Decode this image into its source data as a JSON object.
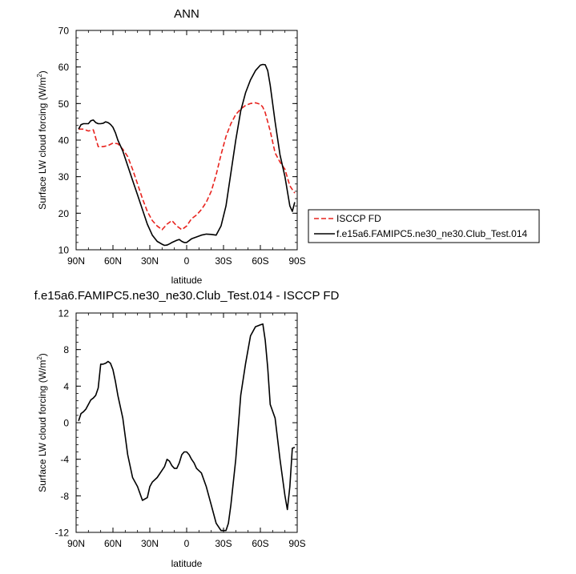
{
  "chart_data": [
    {
      "type": "line",
      "title": "ANN",
      "xlabel": "latitude",
      "ylabel": "Surface LW cloud forcing (W/m",
      "ylabel_sup": "2",
      "ylabel_suffix": ")",
      "xlim": [
        90,
        -90
      ],
      "ylim": [
        10,
        70
      ],
      "yticks": [
        10,
        20,
        30,
        40,
        50,
        60,
        70
      ],
      "xticks": [
        {
          "value": 90,
          "label": "90N"
        },
        {
          "value": 60,
          "label": "60N"
        },
        {
          "value": 30,
          "label": "30N"
        },
        {
          "value": 0,
          "label": "0"
        },
        {
          "value": -30,
          "label": "30S"
        },
        {
          "value": -60,
          "label": "60S"
        },
        {
          "value": -90,
          "label": "90S"
        }
      ],
      "legend": {
        "placement": "right"
      },
      "series": [
        {
          "name": "ISCCP FD",
          "color": "#e8231e",
          "dash": "dashed",
          "x": [
            88,
            84,
            80,
            76,
            72,
            68,
            64,
            60,
            56,
            52,
            48,
            44,
            40,
            36,
            32,
            28,
            24,
            20,
            16,
            12,
            8,
            4,
            0,
            -4,
            -8,
            -12,
            -16,
            -20,
            -24,
            -28,
            -32,
            -36,
            -40,
            -44,
            -48,
            -52,
            -56,
            -60,
            -62,
            -64,
            -68,
            -72,
            -76,
            -80,
            -84,
            -88
          ],
          "y": [
            43,
            43,
            42.5,
            42.8,
            38.2,
            38.2,
            38.5,
            39.2,
            39,
            37.5,
            35.5,
            32,
            28,
            24,
            20.5,
            18,
            16.5,
            15.5,
            17,
            18,
            16.5,
            15.5,
            16.5,
            18.5,
            19.5,
            21,
            23,
            26,
            30.5,
            36,
            41,
            44.5,
            47,
            48.5,
            49.5,
            50,
            50.2,
            49.8,
            49,
            47.5,
            42.5,
            36.5,
            34,
            32,
            27.5,
            25.5
          ]
        },
        {
          "name": "f.e15a6.FAMIPC5.ne30_ne30.Club_Test.014",
          "color": "#000000",
          "dash": "solid",
          "x": [
            88,
            86,
            84,
            80,
            78,
            76,
            74,
            72,
            70,
            68,
            66,
            64,
            62,
            60,
            58,
            56,
            52,
            48,
            44,
            40,
            36,
            32,
            28,
            24,
            20,
            18,
            16,
            14,
            12,
            10,
            8,
            6,
            4,
            2,
            0,
            -4,
            -8,
            -12,
            -16,
            -20,
            -24,
            -28,
            -32,
            -36,
            -40,
            -44,
            -48,
            -52,
            -56,
            -60,
            -62,
            -64,
            -66,
            -68,
            -72,
            -76,
            -80,
            -84,
            -86,
            -88
          ],
          "y": [
            43,
            44.2,
            44.5,
            44.5,
            45.3,
            45.5,
            44.8,
            44.5,
            44.5,
            44.6,
            45,
            44.8,
            44.3,
            43.5,
            42,
            40,
            37,
            33,
            29,
            25,
            21,
            17,
            14,
            12.3,
            11.5,
            11.2,
            11.3,
            11.6,
            12,
            12.3,
            12.6,
            12.8,
            12.3,
            12,
            12,
            13,
            13.5,
            14,
            14.3,
            14.2,
            14,
            16.5,
            22,
            31,
            40,
            48,
            53,
            56.5,
            59,
            60.5,
            60.7,
            60.6,
            59,
            55,
            45,
            36,
            30,
            22,
            20.5,
            23
          ]
        }
      ]
    },
    {
      "type": "line",
      "title": "f.e15a6.FAMIPC5.ne30_ne30.Club_Test.014 - ISCCP FD",
      "xlabel": "latitude",
      "ylabel": "Surface LW cloud forcing (W/m",
      "ylabel_sup": "2",
      "ylabel_suffix": ")",
      "xlim": [
        90,
        -90
      ],
      "ylim": [
        -12,
        12
      ],
      "yticks": [
        -12,
        -8,
        -4,
        0,
        4,
        8,
        12
      ],
      "xticks": [
        {
          "value": 90,
          "label": "90N"
        },
        {
          "value": 60,
          "label": "60N"
        },
        {
          "value": 30,
          "label": "30N"
        },
        {
          "value": 0,
          "label": "0"
        },
        {
          "value": -30,
          "label": "30S"
        },
        {
          "value": -60,
          "label": "60S"
        },
        {
          "value": -90,
          "label": "90S"
        }
      ],
      "series": [
        {
          "color": "#000000",
          "dash": "solid",
          "x": [
            88,
            86,
            84,
            82,
            80,
            78,
            76,
            74,
            72,
            70,
            68,
            66,
            64,
            62,
            60,
            58,
            56,
            52,
            48,
            44,
            40,
            36,
            32,
            30,
            28,
            24,
            20,
            18,
            16,
            14,
            12,
            10,
            8,
            6,
            4,
            2,
            0,
            -2,
            -4,
            -6,
            -8,
            -12,
            -16,
            -20,
            -24,
            -28,
            -30,
            -32,
            -34,
            -36,
            -40,
            -44,
            -48,
            -52,
            -56,
            -58,
            -60,
            -62,
            -64,
            -66,
            -68,
            -72,
            -76,
            -80,
            -82,
            -84,
            -86,
            -88
          ],
          "y": [
            0.2,
            1,
            1.2,
            1.5,
            2,
            2.5,
            2.7,
            3,
            3.8,
            6.4,
            6.4,
            6.5,
            6.7,
            6.5,
            5.8,
            4.5,
            3,
            0.5,
            -3.5,
            -6,
            -7,
            -8.5,
            -8.2,
            -7,
            -6.5,
            -6,
            -5.2,
            -4.8,
            -4,
            -4.2,
            -4.7,
            -5,
            -5,
            -4.4,
            -3.5,
            -3.2,
            -3.2,
            -3.5,
            -4,
            -4.4,
            -5,
            -5.5,
            -7,
            -9,
            -11,
            -11.8,
            -11.8,
            -11.8,
            -11,
            -9,
            -4,
            3,
            6.5,
            9.5,
            10.5,
            10.6,
            10.7,
            10.8,
            9,
            6,
            2,
            0.5,
            -4,
            -8,
            -9.5,
            -7,
            -2.8,
            -2.7
          ]
        }
      ]
    }
  ]
}
